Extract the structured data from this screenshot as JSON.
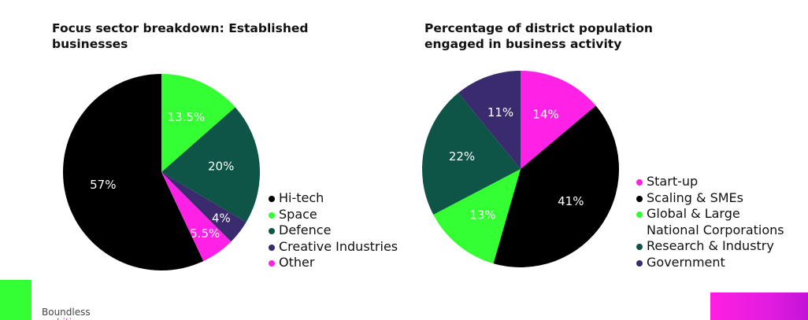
{
  "chart_data": [
    {
      "type": "pie",
      "title": "Focus sector breakdown: Established businesses",
      "start_angle_deg": 0,
      "direction": "clockwise",
      "slices": [
        {
          "label": "Space",
          "value": 13.5,
          "display": "13.5%",
          "color": "#33ff33"
        },
        {
          "label": "Defence",
          "value": 20,
          "display": "20%",
          "color": "#0f5547"
        },
        {
          "label": "Creative Industries",
          "value": 4,
          "display": "4%",
          "color": "#3a2a6e"
        },
        {
          "label": "Other",
          "value": 5.5,
          "display": "5.5%",
          "color": "#ff22e6"
        },
        {
          "label": "Hi-tech",
          "value": 57,
          "display": "57%",
          "color": "#000000"
        }
      ],
      "legend": [
        {
          "label": "Hi-tech",
          "color": "#000000"
        },
        {
          "label": "Space",
          "color": "#33ff33"
        },
        {
          "label": "Defence",
          "color": "#0f5547"
        },
        {
          "label": "Creative Industries",
          "color": "#3a2a6e"
        },
        {
          "label": "Other",
          "color": "#ff22e6"
        }
      ],
      "legend_position": "right"
    },
    {
      "type": "pie",
      "title": "Percentage of district population engaged in business activity",
      "start_angle_deg": 0,
      "direction": "clockwise",
      "slices": [
        {
          "label": "Start-up",
          "value": 14,
          "display": "14%",
          "color": "#ff22e6"
        },
        {
          "label": "Scaling & SMEs",
          "value": 41,
          "display": "41%",
          "color": "#000000"
        },
        {
          "label": "Global & Large National Corporations",
          "value": 13,
          "display": "13%",
          "color": "#33ff33"
        },
        {
          "label": "Research & Industry",
          "value": 22,
          "display": "22%",
          "color": "#0f5547"
        },
        {
          "label": "Government",
          "value": 11,
          "display": "11%",
          "color": "#3a2a6e"
        }
      ],
      "legend": [
        {
          "label": "Start-up",
          "color": "#ff22e6"
        },
        {
          "label": "Scaling & SMEs",
          "color": "#000000"
        },
        {
          "label": "Global & Large\nNational Corporations",
          "color": "#33ff33"
        },
        {
          "label": "Research & Industry",
          "color": "#0f5547"
        },
        {
          "label": "Government",
          "color": "#3a2a6e"
        }
      ],
      "legend_position": "right"
    }
  ],
  "footer": {
    "brand": "Boundless",
    "brand_sub": "ambition",
    "left_accent_color": "#33ff33",
    "right_accent_color": "#ff1fe0"
  }
}
